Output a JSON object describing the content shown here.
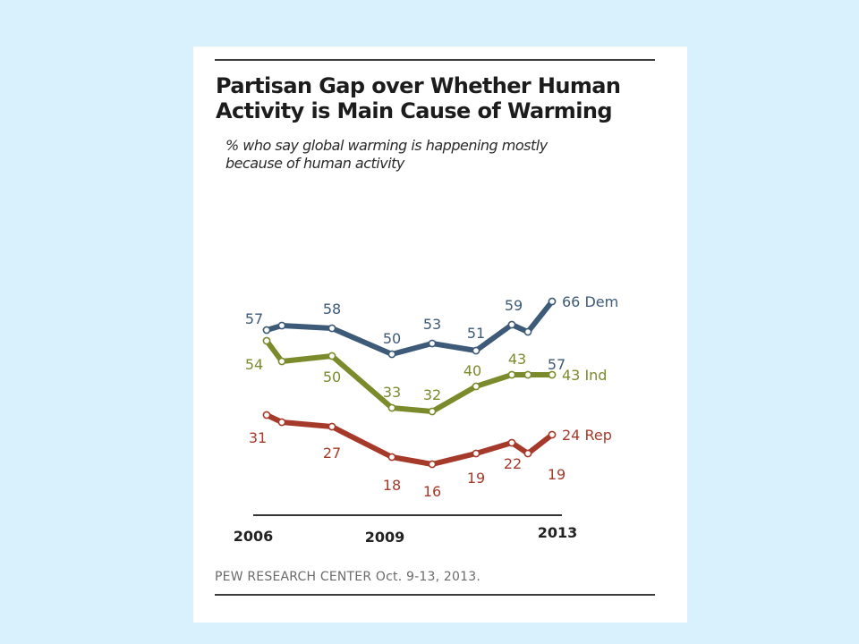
{
  "title_lines": [
    "Partisan Gap over Whether Human",
    "Activity is Main Cause of Warming"
  ],
  "subtitle_lines": [
    "% who say global warming is happening mostly",
    "because of human activity"
  ],
  "source": "PEW RESEARCH CENTER Oct. 9-13, 2013.",
  "colors": {
    "dem": "#3d5a78",
    "ind": "#7b8b2c",
    "rep": "#a53a2a",
    "page_background": "#d9f1fc"
  },
  "chart_data": {
    "type": "line",
    "title": "Partisan Gap over Whether Human Activity is Main Cause of Warming",
    "subtitle": "% who say global warming is happening mostly because of human activity",
    "x_tick_labels": [
      "2006",
      "2009",
      "2013"
    ],
    "x": [
      2006.5,
      2006.75,
      2008.0,
      2009.5,
      2010.5,
      2011.6,
      2012.5,
      2012.9,
      2013.25
    ],
    "series": [
      {
        "name": "Dem",
        "end_label": "66 Dem",
        "values": [
          57,
          null,
          58,
          50,
          53,
          51,
          59,
          57,
          66
        ]
      },
      {
        "name": "Ind",
        "end_label": "43 Ind",
        "values": [
          54,
          null,
          50,
          33,
          32,
          40,
          43,
          null,
          43
        ]
      },
      {
        "name": "Rep",
        "end_label": "24 Rep",
        "values": [
          31,
          null,
          27,
          18,
          16,
          19,
          22,
          19,
          24
        ]
      }
    ],
    "ylim": [
      10,
      70
    ],
    "grid": false,
    "legend": "line-end labels"
  }
}
